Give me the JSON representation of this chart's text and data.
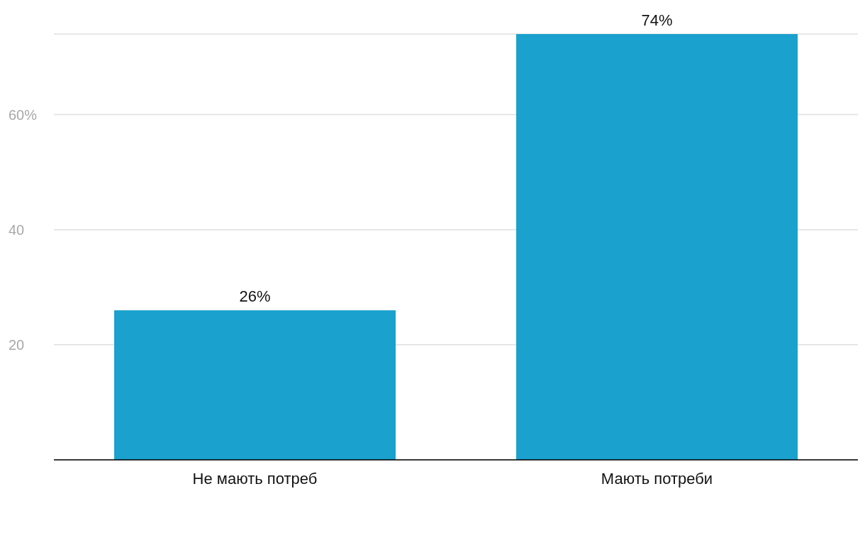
{
  "chart_data": {
    "type": "bar",
    "categories": [
      "Не мають потреб",
      "Мають потреби"
    ],
    "values": [
      26,
      74
    ],
    "value_labels": [
      "26%",
      "74%"
    ],
    "color": "#1aa1cd",
    "ylim": [
      0,
      74
    ],
    "yticks": [
      20,
      40,
      {
        "value": 60,
        "label": "60%"
      }
    ],
    "grid": "y"
  }
}
